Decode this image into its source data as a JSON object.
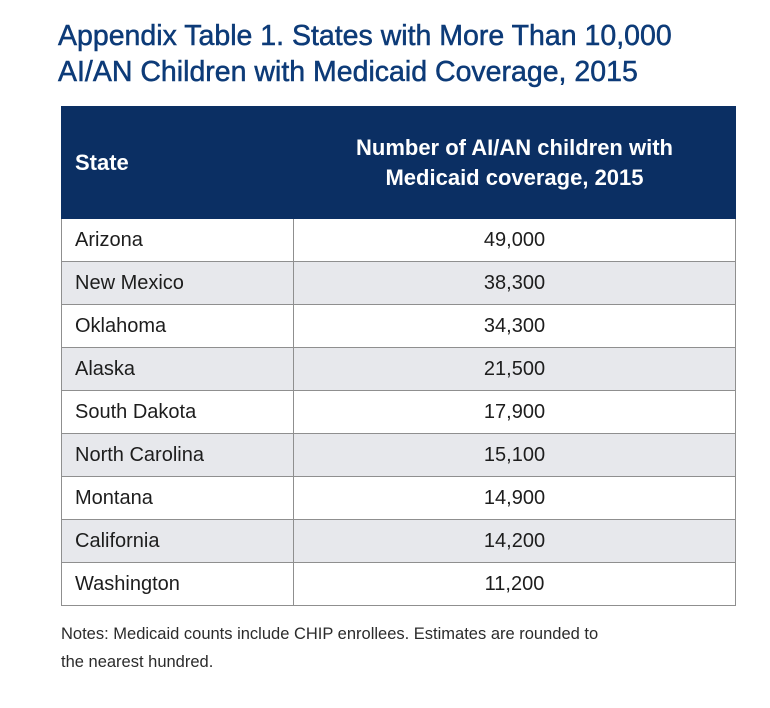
{
  "title": {
    "line1": "Appendix Table 1. States with More Than 10,000",
    "line2": "AI/AN Children with Medicaid Coverage, 2015"
  },
  "table": {
    "headers": {
      "state": "State",
      "count_line1": "Number of AI/AN children with",
      "count_line2": "Medicaid coverage, 2015"
    },
    "rows": [
      {
        "state": "Arizona",
        "count": "49,000"
      },
      {
        "state": "New Mexico",
        "count": "38,300"
      },
      {
        "state": "Oklahoma",
        "count": "34,300"
      },
      {
        "state": "Alaska",
        "count": "21,500"
      },
      {
        "state": "South Dakota",
        "count": "17,900"
      },
      {
        "state": "North Carolina",
        "count": "15,100"
      },
      {
        "state": "Montana",
        "count": "14,900"
      },
      {
        "state": "California",
        "count": "14,200"
      },
      {
        "state": "Washington",
        "count": "11,200"
      }
    ]
  },
  "notes": {
    "line1": "Notes: Medicaid counts include CHIP enrollees. Estimates are rounded to",
    "line2": "the nearest hundred."
  },
  "colors": {
    "title": "#0d3b78",
    "header_bg": "#0b2f63",
    "header_text": "#ffffff",
    "stripe": "#e7e8ec",
    "border": "#8f8f8f"
  }
}
